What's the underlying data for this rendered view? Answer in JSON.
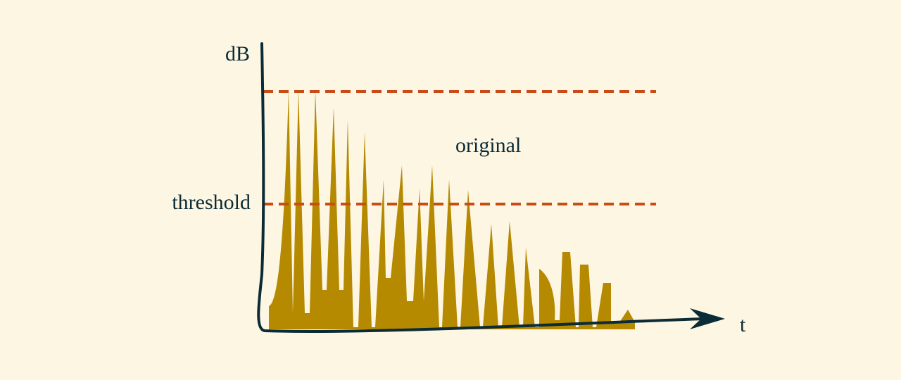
{
  "diagram": {
    "y_axis_label": "dB",
    "x_axis_label": "t",
    "threshold_label": "threshold",
    "signal_label": "original"
  },
  "colors": {
    "background": "#fdf6e3",
    "axis": "#0b2b36",
    "signal": "#b58900",
    "threshold_line": "#cb4b16"
  }
}
